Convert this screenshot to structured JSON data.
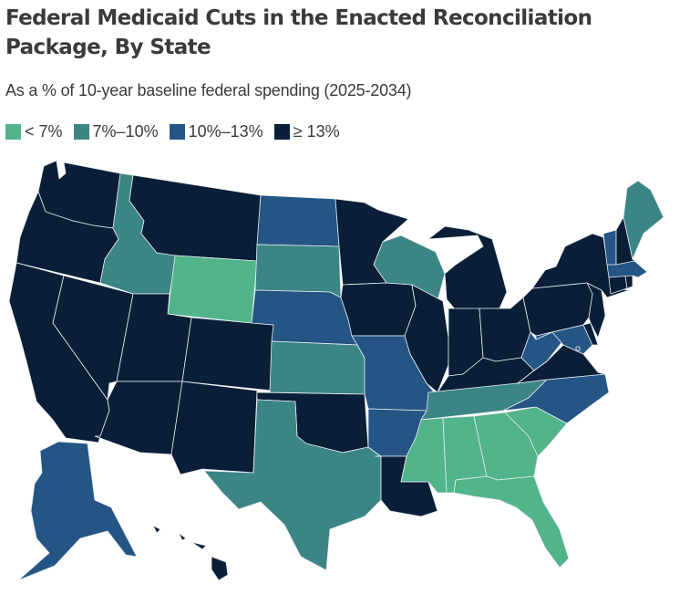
{
  "title": "Federal Medicaid Cuts in the Enacted Reconciliation Package, By State",
  "subtitle": "As a % of 10-year baseline federal spending (2025-2034)",
  "legend": [
    {
      "id": "lt7",
      "label": "< 7%",
      "color": "#52b48a"
    },
    {
      "id": "7to10",
      "label": "7%–10%",
      "color": "#3c8585"
    },
    {
      "id": "10to13",
      "label": "10%–13%",
      "color": "#245584"
    },
    {
      "id": "ge13",
      "label": "≥ 13%",
      "color": "#0a1e38"
    }
  ],
  "chart_data": {
    "type": "choropleth",
    "title": "Federal Medicaid Cuts in the Enacted Reconciliation Package, By State",
    "subtitle": "As a % of 10-year baseline federal spending (2025-2034)",
    "legend_position": "top-left",
    "bins": [
      "< 7%",
      "7%–10%",
      "10%–13%",
      "≥ 13%"
    ],
    "states": {
      "WA": "≥ 13%",
      "OR": "≥ 13%",
      "CA": "≥ 13%",
      "NV": "≥ 13%",
      "ID": "7%–10%",
      "MT": "≥ 13%",
      "WY": "< 7%",
      "UT": "≥ 13%",
      "AZ": "≥ 13%",
      "CO": "≥ 13%",
      "NM": "≥ 13%",
      "ND": "10%–13%",
      "SD": "7%–10%",
      "NE": "10%–13%",
      "KS": "7%–10%",
      "OK": "≥ 13%",
      "TX": "7%–10%",
      "MN": "≥ 13%",
      "IA": "≥ 13%",
      "MO": "10%–13%",
      "AR": "10%–13%",
      "LA": "≥ 13%",
      "WI": "7%–10%",
      "IL": "≥ 13%",
      "MI": "≥ 13%",
      "IN": "≥ 13%",
      "OH": "≥ 13%",
      "KY": "≥ 13%",
      "TN": "7%–10%",
      "MS": "< 7%",
      "AL": "< 7%",
      "GA": "< 7%",
      "FL": "< 7%",
      "SC": "< 7%",
      "NC": "10%–13%",
      "VA": "≥ 13%",
      "WV": "10%–13%",
      "MD": "10%–13%",
      "DE": "≥ 13%",
      "NJ": "≥ 13%",
      "PA": "≥ 13%",
      "NY": "≥ 13%",
      "CT": "≥ 13%",
      "RI": "≥ 13%",
      "MA": "10%–13%",
      "VT": "10%–13%",
      "NH": "≥ 13%",
      "ME": "7%–10%",
      "AK": "10%–13%",
      "HI": "≥ 13%",
      "DC": "10%–13%"
    }
  }
}
